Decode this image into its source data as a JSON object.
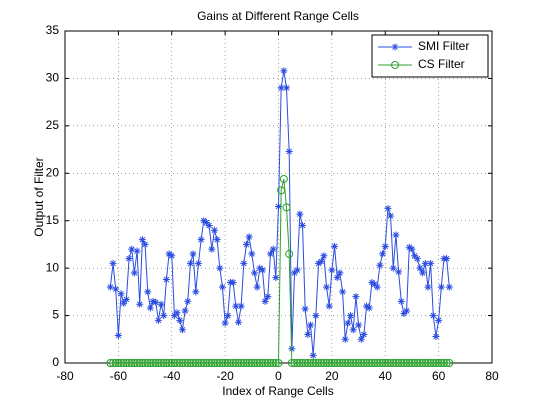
{
  "chart_data": {
    "type": "line",
    "title": "Gains at Different Range Cells",
    "xlabel": "Index of Range Cells",
    "ylabel": "Output of Filter",
    "x": [
      -63,
      -62,
      -61,
      -60,
      -59,
      -58,
      -57,
      -56,
      -55,
      -54,
      -53,
      -52,
      -51,
      -50,
      -49,
      -48,
      -47,
      -46,
      -45,
      -44,
      -43,
      -42,
      -41,
      -40,
      -39,
      -38,
      -37,
      -36,
      -35,
      -34,
      -33,
      -32,
      -31,
      -30,
      -29,
      -28,
      -27,
      -26,
      -25,
      -24,
      -23,
      -22,
      -21,
      -20,
      -19,
      -18,
      -17,
      -16,
      -15,
      -14,
      -13,
      -12,
      -11,
      -10,
      -9,
      -8,
      -7,
      -6,
      -5,
      -4,
      -3,
      -2,
      -1,
      0,
      1,
      2,
      3,
      4,
      5,
      6,
      7,
      8,
      9,
      10,
      11,
      12,
      13,
      14,
      15,
      16,
      17,
      18,
      19,
      20,
      21,
      22,
      23,
      24,
      25,
      26,
      27,
      28,
      29,
      30,
      31,
      32,
      33,
      34,
      35,
      36,
      37,
      38,
      39,
      40,
      41,
      42,
      43,
      44,
      45,
      46,
      47,
      48,
      49,
      50,
      51,
      52,
      53,
      54,
      55,
      56,
      57,
      58,
      59,
      60,
      61,
      62,
      63,
      64
    ],
    "series": [
      {
        "name": "SMI Filter",
        "color": "#2b4ce0",
        "marker": "asterisk",
        "values": [
          8,
          10.5,
          7.8,
          2.9,
          7.3,
          6.3,
          6.7,
          11,
          12,
          9.5,
          11.8,
          6.2,
          13,
          12.5,
          7.5,
          5.8,
          6.5,
          6.4,
          4.5,
          6.2,
          5,
          8.8,
          11.5,
          11.3,
          5,
          5.3,
          4.5,
          3.5,
          5.5,
          6.5,
          10.5,
          11.5,
          7.5,
          10.5,
          13,
          15,
          14.8,
          14.5,
          12,
          14,
          13,
          10,
          8,
          4.2,
          5,
          8.5,
          8.5,
          6,
          4.3,
          6,
          10.5,
          12.5,
          13.3,
          11.5,
          9.5,
          8,
          10,
          9.8,
          6.5,
          7,
          11.5,
          12,
          9,
          16.5,
          29,
          30.8,
          29,
          22.3,
          1.5,
          9.5,
          9.8,
          15.7,
          14.5,
          5.7,
          3,
          4,
          0.8,
          5,
          10.5,
          10.7,
          11.3,
          8,
          6,
          9.8,
          12.3,
          9,
          9.5,
          7.5,
          2.5,
          4.2,
          5,
          3.5,
          7,
          4,
          2.5,
          3,
          6,
          5.8,
          8.5,
          8.3,
          8,
          10.3,
          11.5,
          12.3,
          16.3,
          15.5,
          10,
          13.5,
          9.6,
          6.5,
          5.2,
          5.5,
          12.2,
          12,
          11.3,
          11,
          10,
          9.5,
          10.5,
          8,
          10.5,
          5,
          2.8,
          4.5,
          8,
          11,
          11,
          8
        ]
      },
      {
        "name": "CS Filter",
        "color": "#2ca02c",
        "marker": "circle",
        "values": [
          0,
          0,
          0,
          0,
          0,
          0,
          0,
          0,
          0,
          0,
          0,
          0,
          0,
          0,
          0,
          0,
          0,
          0,
          0,
          0,
          0,
          0,
          0,
          0,
          0,
          0,
          0,
          0,
          0,
          0,
          0,
          0,
          0,
          0,
          0,
          0,
          0,
          0,
          0,
          0,
          0,
          0,
          0,
          0,
          0,
          0,
          0,
          0,
          0,
          0,
          0,
          0,
          0,
          0,
          0,
          0,
          0,
          0,
          0,
          0,
          0,
          0,
          0,
          0,
          18.2,
          19.4,
          16.4,
          11.5,
          0,
          0,
          0,
          0,
          0,
          0,
          0,
          0,
          0,
          0,
          0,
          0,
          0,
          0,
          0,
          0,
          0,
          0,
          0,
          0,
          0,
          0,
          0,
          0,
          0,
          0,
          0,
          0,
          0,
          0,
          0,
          0,
          0,
          0,
          0,
          0,
          0,
          0,
          0,
          0,
          0,
          0,
          0,
          0,
          0,
          0,
          0,
          0,
          0,
          0,
          0,
          0,
          0,
          0,
          0,
          0,
          0,
          0,
          0,
          0
        ]
      }
    ],
    "xlim": [
      -80,
      80
    ],
    "xticks": [
      -80,
      -60,
      -40,
      -20,
      0,
      20,
      40,
      60,
      80
    ],
    "ylim": [
      0,
      35
    ],
    "yticks": [
      0,
      5,
      10,
      15,
      20,
      25,
      30,
      35
    ],
    "grid": true,
    "legend": "northeast"
  }
}
